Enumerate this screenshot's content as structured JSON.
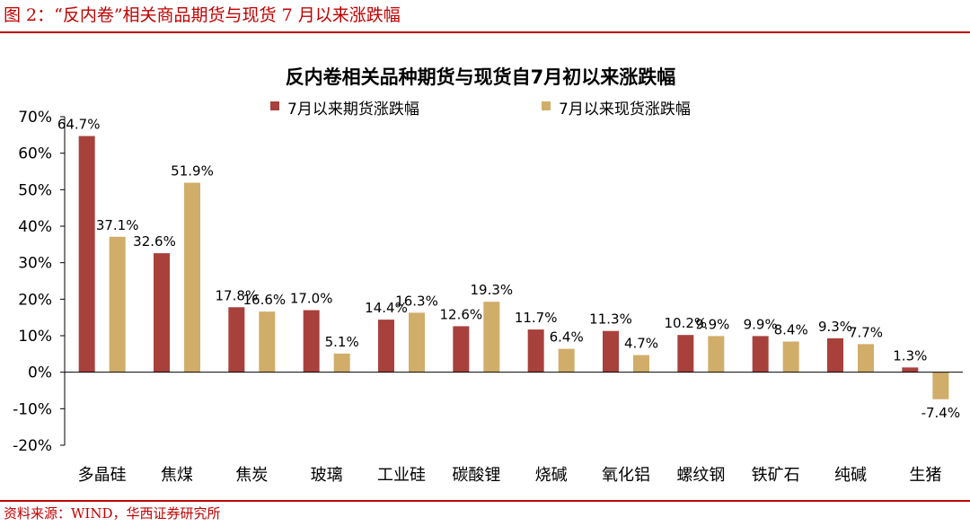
{
  "figure": {
    "label": "图 2：“反内卷”相关商品期货与现货 7 月以来涨跌幅",
    "source": "资料来源：WIND，华西证券研究所"
  },
  "chart_data": {
    "type": "bar",
    "title": "反内卷相关品种期货与现货自7月初以来涨跌幅",
    "categories": [
      "多晶硅",
      "焦煤",
      "焦炭",
      "玻璃",
      "工业硅",
      "碳酸锂",
      "烧碱",
      "氧化铝",
      "螺纹钢",
      "铁矿石",
      "纯碱",
      "生猪"
    ],
    "series": [
      {
        "name": "7月以来期货涨跌幅",
        "color": "#a8413b",
        "values": [
          64.7,
          32.6,
          17.8,
          17.0,
          14.4,
          12.6,
          11.7,
          11.3,
          10.2,
          9.9,
          9.3,
          1.3
        ],
        "labels": [
          "64.7%",
          "32.6%",
          "17.8%",
          "17.0%",
          "14.4%",
          "12.6%",
          "11.7%",
          "11.3%",
          "10.2%",
          "9.9%",
          "9.3%",
          "1.3%"
        ]
      },
      {
        "name": "7月以来现货涨跌幅",
        "color": "#d0ad69",
        "values": [
          37.1,
          51.9,
          16.6,
          5.1,
          16.3,
          19.3,
          6.4,
          4.7,
          9.9,
          8.4,
          7.7,
          -7.4
        ],
        "labels": [
          "37.1%",
          "51.9%",
          "16.6%",
          "5.1%",
          "16.3%",
          "19.3%",
          "6.4%",
          "4.7%",
          "9.9%",
          "8.4%",
          "7.7%",
          "-7.4%"
        ]
      }
    ],
    "yticks": [
      70,
      60,
      50,
      40,
      30,
      20,
      10,
      0,
      -10,
      -20
    ],
    "ytick_labels": [
      "70%",
      "60%",
      "50%",
      "40%",
      "30%",
      "20%",
      "10%",
      "0%",
      "-10%",
      "-20%"
    ],
    "ylim": [
      -20,
      70
    ],
    "legend_position": "top",
    "xlabel": "",
    "ylabel": ""
  }
}
